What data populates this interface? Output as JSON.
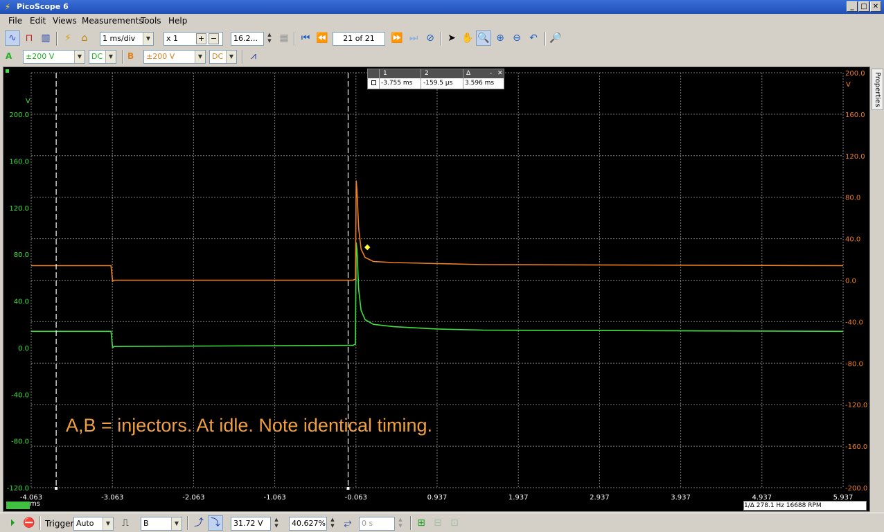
{
  "window": {
    "title": "PicoScope 6",
    "controls": [
      "_",
      "□",
      "✕"
    ]
  },
  "menu": [
    "File",
    "Edit",
    "Views",
    "Measurements",
    "Tools",
    "Help"
  ],
  "toolbar": {
    "timebase": "1 ms/div",
    "zoom": "x 1",
    "samples": "16.2...",
    "buffer_position": "21 of 21"
  },
  "channels": {
    "a": {
      "letter": "A",
      "range": "±200 V",
      "coupling": "DC",
      "color": "#40e040"
    },
    "b": {
      "letter": "B",
      "range": "±200 V",
      "coupling": "DC",
      "color": "#f08020"
    }
  },
  "plot": {
    "x_ticks": [
      "-4.063",
      "-3.063",
      "-2.063",
      "-1.063",
      "-0.063",
      "0.937",
      "1.937",
      "2.937",
      "3.937",
      "4.937",
      "5.937"
    ],
    "x_unit": "ms",
    "a_unit": "V",
    "b_unit": "V",
    "a_ticks": [
      "200.0",
      "160.0",
      "120.0",
      "80.0",
      "40.0",
      "0.0",
      "-40.0",
      "-80.0",
      "-120.0"
    ],
    "b_ticks": [
      "200.0",
      "160.0",
      "120.0",
      "80.0",
      "40.0",
      "0.0",
      "-40.0",
      "-80.0",
      "-120.0",
      "-160.0",
      "-200.0"
    ],
    "caption": "A,B = injectors.  At idle.  Note identical timing."
  },
  "chart_data": {
    "type": "line",
    "xlabel": "ms",
    "ylabel": "V",
    "xlim": [
      -4.063,
      5.937
    ],
    "ylim_a": [
      -120,
      200
    ],
    "ylim_b": [
      -200,
      200
    ],
    "series": [
      {
        "name": "A",
        "color": "#40e040",
        "x": [
          -4.063,
          -3.08,
          -3.06,
          -3.04,
          -0.1,
          -0.07,
          -0.06,
          -0.05,
          -0.03,
          0.0,
          0.05,
          0.15,
          0.4,
          0.93,
          1.5,
          5.937
        ],
        "y": [
          14,
          14,
          0,
          1,
          2,
          3,
          90,
          84,
          50,
          32,
          24,
          20,
          18,
          16,
          15,
          14
        ]
      },
      {
        "name": "B",
        "color": "#f08020",
        "x": [
          -4.063,
          -3.08,
          -3.06,
          -3.04,
          -0.1,
          -0.07,
          -0.06,
          -0.05,
          -0.03,
          0.0,
          0.05,
          0.15,
          0.4,
          0.93,
          1.5,
          5.937
        ],
        "y": [
          14,
          14,
          -1,
          0,
          0,
          1,
          96,
          86,
          50,
          30,
          22,
          18,
          17,
          16,
          15,
          14
        ]
      }
    ],
    "grid": true
  },
  "rulers": {
    "headers": [
      "1",
      "2",
      "Δ"
    ],
    "values": [
      "-3.755 ms",
      "-159.5 µs",
      "3.596 ms"
    ],
    "ruler1_ms": -3.755,
    "ruler2_ms": -0.1595
  },
  "status": {
    "freq": "1/Δ  278.1 Hz  16688 RPM"
  },
  "side_tab": "Properties",
  "bottom": {
    "trigger_label": "Trigger",
    "trigger_mode": "Auto",
    "trigger_source": "B",
    "threshold": "31.72 V",
    "pre_trigger": "40.627%",
    "delay": "0 s"
  }
}
